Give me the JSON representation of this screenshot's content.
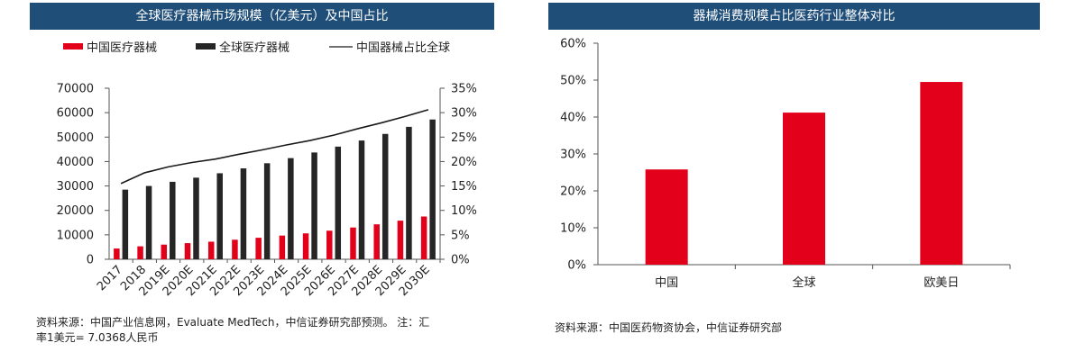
{
  "left": {
    "title": "全球医疗器械市场规模（亿美元）及中国占比",
    "source": "资料来源：中国产业信息网，Evaluate MedTech，中信证券研究部预测。 注：汇率1美元= 7.0368人民币"
  },
  "right": {
    "title": "器械消费规模占比医药行业整体对比",
    "source": "资料来源：中国医药物资协会，中信证券研究部"
  },
  "colors": {
    "header": "#1f4e79",
    "red": "#e2001a",
    "dark": "#262626",
    "line": "#1a1a1a"
  },
  "chart_data": [
    {
      "type": "bar",
      "categories": [
        "2017",
        "2018",
        "2019E",
        "2020E",
        "2021E",
        "2022E",
        "2023E",
        "2024E",
        "2025E",
        "2026E",
        "2027E",
        "2028E",
        "2029E",
        "2030E"
      ],
      "series": [
        {
          "name": "中国医疗器械",
          "type": "bar",
          "axis": "left",
          "values": [
            4400,
            5300,
            6000,
            6600,
            7200,
            8000,
            8800,
            9700,
            10600,
            11700,
            13000,
            14300,
            15800,
            17500
          ]
        },
        {
          "name": "全球医疗器械",
          "type": "bar",
          "axis": "left",
          "values": [
            28500,
            30000,
            31700,
            33400,
            35200,
            37200,
            39300,
            41400,
            43700,
            46100,
            48600,
            51300,
            54200,
            57200
          ]
        },
        {
          "name": "中国器械占比全球",
          "type": "line",
          "axis": "right",
          "values": [
            15.5,
            17.7,
            18.9,
            19.8,
            20.5,
            21.5,
            22.4,
            23.4,
            24.3,
            25.4,
            26.7,
            27.9,
            29.2,
            30.6
          ]
        }
      ],
      "y_left": {
        "ticks": [
          "0",
          "10000",
          "20000",
          "30000",
          "40000",
          "50000",
          "60000",
          "70000"
        ],
        "ylim": [
          0,
          70000
        ]
      },
      "y_right": {
        "ticks": [
          "0%",
          "5%",
          "10%",
          "15%",
          "20%",
          "25%",
          "30%",
          "35%"
        ],
        "ylim": [
          0,
          35
        ]
      },
      "legend_position": "top"
    },
    {
      "type": "bar",
      "categories": [
        "中国",
        "全球",
        "欧美日"
      ],
      "values": [
        25.8,
        41.2,
        49.5
      ],
      "y_ticks": [
        "0%",
        "10%",
        "20%",
        "30%",
        "40%",
        "50%",
        "60%"
      ],
      "ylim": [
        0,
        60
      ]
    }
  ]
}
